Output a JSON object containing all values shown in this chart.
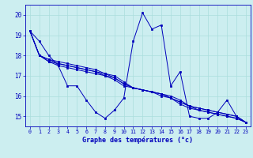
{
  "title": "Graphe des températures (°c)",
  "background_color": "#cceef0",
  "grid_color": "#aadddd",
  "line_color": "#0000bb",
  "marker_color": "#0000bb",
  "xlim": [
    -0.5,
    23.5
  ],
  "ylim": [
    14.5,
    20.5
  ],
  "yticks": [
    15,
    16,
    17,
    18,
    19,
    20
  ],
  "xticks": [
    0,
    1,
    2,
    3,
    4,
    5,
    6,
    7,
    8,
    9,
    10,
    11,
    12,
    13,
    14,
    15,
    16,
    17,
    18,
    19,
    20,
    21,
    22,
    23
  ],
  "series": [
    [
      19.2,
      18.7,
      18.0,
      17.5,
      16.5,
      16.5,
      15.8,
      15.2,
      14.9,
      15.3,
      15.9,
      18.7,
      20.1,
      19.3,
      19.5,
      16.5,
      17.2,
      15.0,
      14.9,
      14.9,
      15.2,
      15.8,
      15.0,
      14.7
    ],
    [
      19.2,
      18.0,
      17.7,
      17.5,
      17.4,
      17.3,
      17.2,
      17.1,
      17.0,
      16.9,
      16.6,
      16.4,
      16.3,
      16.2,
      16.1,
      15.9,
      15.7,
      15.5,
      15.4,
      15.3,
      15.2,
      15.1,
      15.0,
      14.7
    ],
    [
      19.2,
      18.0,
      17.7,
      17.6,
      17.5,
      17.4,
      17.3,
      17.2,
      17.0,
      16.8,
      16.5,
      16.4,
      16.3,
      16.2,
      16.1,
      15.9,
      15.6,
      15.4,
      15.3,
      15.2,
      15.1,
      15.0,
      14.9,
      14.7
    ],
    [
      19.2,
      18.0,
      17.8,
      17.6,
      17.5,
      17.4,
      17.3,
      17.2,
      17.1,
      16.9,
      16.6,
      16.4,
      16.3,
      16.2,
      16.0,
      15.9,
      15.7,
      15.5,
      15.3,
      15.2,
      15.1,
      15.0,
      14.9,
      14.7
    ],
    [
      19.2,
      18.0,
      17.8,
      17.7,
      17.6,
      17.5,
      17.4,
      17.3,
      17.1,
      17.0,
      16.7,
      16.4,
      16.3,
      16.2,
      16.1,
      16.0,
      15.8,
      15.5,
      15.4,
      15.3,
      15.2,
      15.1,
      15.0,
      14.7
    ]
  ]
}
